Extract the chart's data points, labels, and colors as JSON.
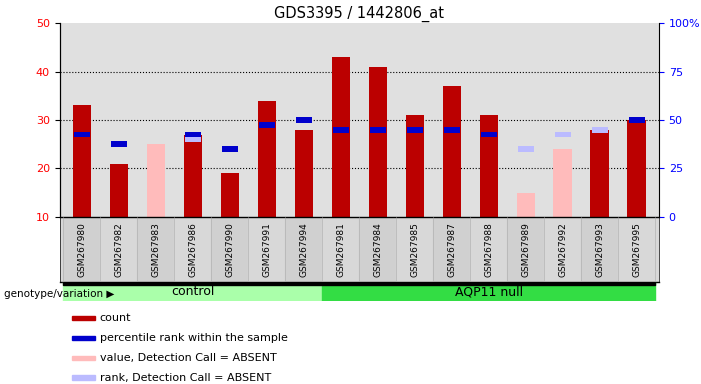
{
  "title": "GDS3395 / 1442806_at",
  "samples": [
    "GSM267980",
    "GSM267982",
    "GSM267983",
    "GSM267986",
    "GSM267990",
    "GSM267991",
    "GSM267994",
    "GSM267981",
    "GSM267984",
    "GSM267985",
    "GSM267987",
    "GSM267988",
    "GSM267989",
    "GSM267992",
    "GSM267993",
    "GSM267995"
  ],
  "groups": [
    "control",
    "control",
    "control",
    "control",
    "control",
    "control",
    "control",
    "AQP11 null",
    "AQP11 null",
    "AQP11 null",
    "AQP11 null",
    "AQP11 null",
    "AQP11 null",
    "AQP11 null",
    "AQP11 null",
    "AQP11 null"
  ],
  "red_values": [
    33,
    21,
    0,
    27,
    19,
    34,
    28,
    43,
    41,
    31,
    37,
    31,
    0,
    0,
    28,
    30
  ],
  "blue_values": [
    27,
    25,
    0,
    27,
    24,
    29,
    30,
    28,
    28,
    28,
    28,
    27,
    0,
    0,
    0,
    30
  ],
  "pink_values": [
    0,
    0,
    25,
    0,
    0,
    0,
    0,
    0,
    0,
    0,
    0,
    0,
    15,
    24,
    27,
    0
  ],
  "lightblue_values": [
    0,
    0,
    0,
    26,
    0,
    0,
    0,
    0,
    0,
    0,
    0,
    0,
    24,
    27,
    28,
    0
  ],
  "red_color": "#bb0000",
  "blue_color": "#0000cc",
  "pink_color": "#ffbbbb",
  "lightblue_color": "#bbbbff",
  "control_color": "#aaffaa",
  "aqp11_color": "#33dd44",
  "group_label": "genotype/variation",
  "ylim": [
    10,
    50
  ],
  "yticks_left": [
    10,
    20,
    30,
    40,
    50
  ],
  "yticks_right_labels": [
    "0",
    "25",
    "50",
    "75",
    "100%"
  ],
  "yticks_right_vals": [
    10,
    20,
    30,
    40,
    50
  ],
  "legend_items": [
    {
      "label": "count",
      "color": "#bb0000"
    },
    {
      "label": "percentile rank within the sample",
      "color": "#0000cc"
    },
    {
      "label": "value, Detection Call = ABSENT",
      "color": "#ffbbbb"
    },
    {
      "label": "rank, Detection Call = ABSENT",
      "color": "#bbbbff"
    }
  ],
  "bar_width": 0.5
}
